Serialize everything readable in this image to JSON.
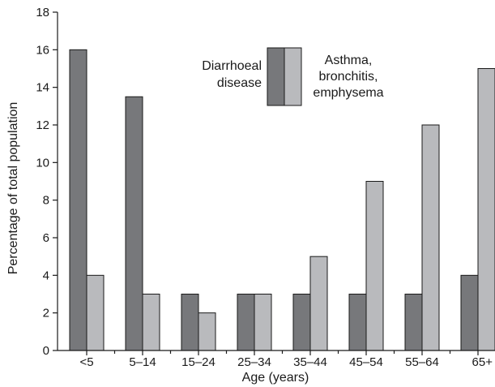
{
  "chart_data": {
    "type": "bar",
    "title": "",
    "xlabel": "Age (years)",
    "ylabel": "Percentage of total population",
    "ylim": [
      0,
      18
    ],
    "yticks": [
      0,
      2,
      4,
      6,
      8,
      10,
      12,
      14,
      16,
      18
    ],
    "categories": [
      "<5",
      "5–14",
      "15–24",
      "25–34",
      "35–44",
      "45–54",
      "55–64",
      "65+"
    ],
    "series": [
      {
        "name": "Diarrhoeal disease",
        "legend_lines": [
          "Diarrhoeal",
          "disease"
        ],
        "color": "#77787b",
        "values": [
          16,
          13.5,
          3,
          3,
          3,
          3,
          3,
          4
        ]
      },
      {
        "name": "Asthma, bronchitis, emphysema",
        "legend_lines": [
          "Asthma,",
          "bronchitis,",
          "emphysema"
        ],
        "color": "#b9babd",
        "values": [
          4,
          3,
          2,
          3,
          5,
          9,
          12,
          15
        ]
      }
    ],
    "legend_position": "top-right",
    "grid": false
  }
}
